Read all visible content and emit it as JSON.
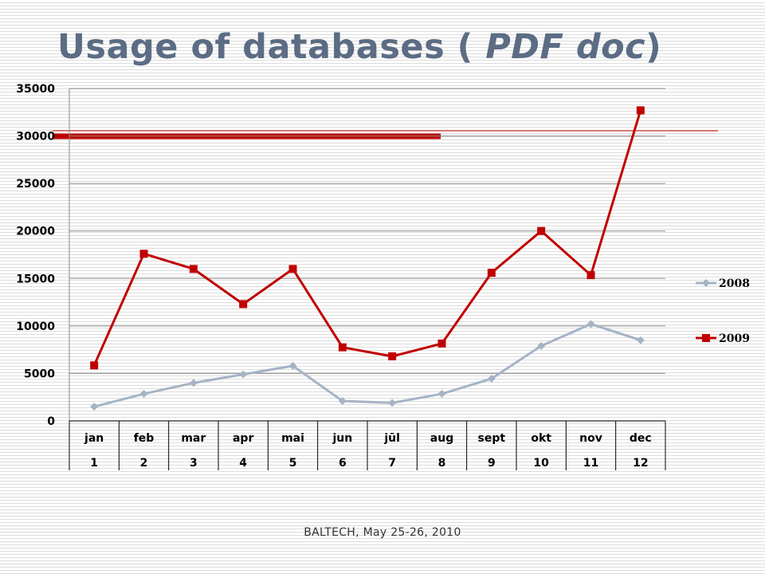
{
  "title_main": "Usage of databases ( ",
  "title_italic": "PDF doc",
  "title_end": ")",
  "footer": "BALTECH,  May 25-26, 2010",
  "chart_data": {
    "type": "line",
    "categories": [
      "jan",
      "feb",
      "mar",
      "apr",
      "mai",
      "jun",
      "jūl",
      "aug",
      "sept",
      "okt",
      "nov",
      "dec"
    ],
    "category_numbers": [
      "1",
      "2",
      "3",
      "4",
      "5",
      "6",
      "7",
      "8",
      "9",
      "10",
      "11",
      "12"
    ],
    "yticks": [
      "0",
      "5000",
      "10000",
      "15000",
      "20000",
      "25000",
      "30000",
      "35000"
    ],
    "ylim": [
      0,
      35000
    ],
    "grid": true,
    "legend_position": "right",
    "series": [
      {
        "name": "2008",
        "color": "#a5b4c5",
        "marker": "diamond",
        "values": [
          1500,
          2850,
          4000,
          4900,
          5800,
          2100,
          1900,
          2850,
          4450,
          7900,
          10200,
          8500
        ]
      },
      {
        "name": "2009",
        "color": "#c00000",
        "marker": "square",
        "values": [
          5850,
          17600,
          16000,
          12300,
          16000,
          7750,
          6800,
          8150,
          15600,
          20000,
          15350,
          32700
        ]
      }
    ]
  }
}
